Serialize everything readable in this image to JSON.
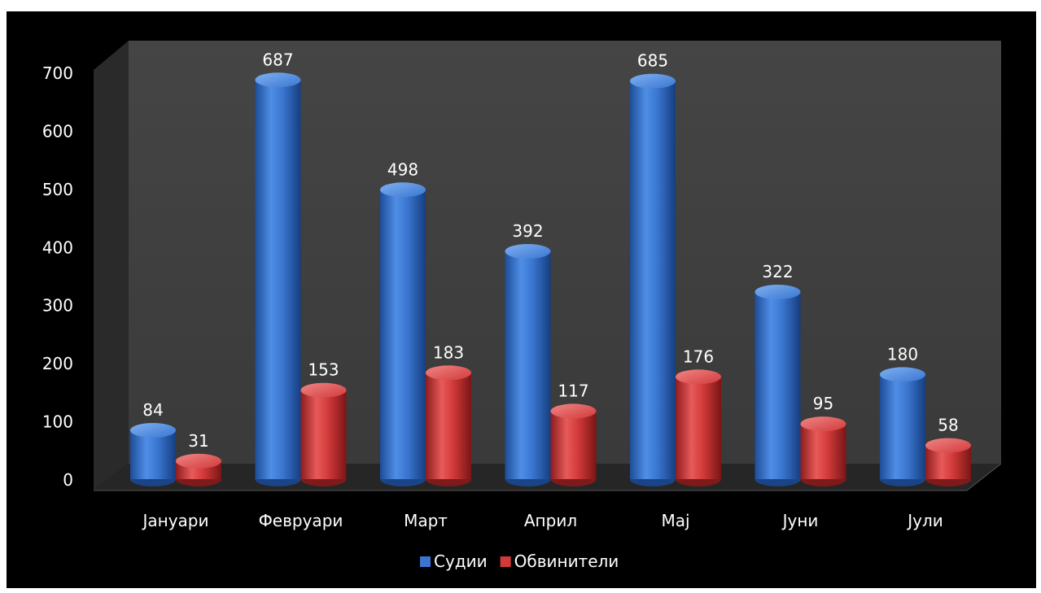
{
  "chart_data": {
    "type": "bar",
    "categories": [
      "Јануари",
      "Февруари",
      "Март",
      "Април",
      "Мај",
      "Јуни",
      "Јули"
    ],
    "series": [
      {
        "name": "Судии",
        "values": [
          84,
          687,
          498,
          392,
          685,
          322,
          180
        ],
        "color": "#3a76d0"
      },
      {
        "name": "Обвинители",
        "values": [
          31,
          153,
          183,
          117,
          176,
          95,
          58
        ],
        "color": "#d23a3a"
      }
    ],
    "ylim": [
      0,
      700
    ],
    "y_ticks": [
      0,
      100,
      200,
      300,
      400,
      500,
      600,
      700
    ],
    "legend_position": "bottom",
    "grid": false,
    "style": "3d-cylinder",
    "background": "#000000",
    "wall_color": "#404040"
  }
}
